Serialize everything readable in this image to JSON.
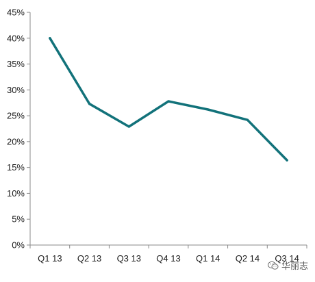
{
  "chart_data": {
    "type": "line",
    "categories": [
      "Q1 13",
      "Q2 13",
      "Q3 13",
      "Q4 13",
      "Q1 14",
      "Q2 14",
      "Q3 14"
    ],
    "series": [
      {
        "values": [
          40.0,
          27.3,
          22.9,
          27.8,
          26.2,
          24.2,
          16.4
        ],
        "color": "#12727a"
      }
    ],
    "title": "",
    "xlabel": "",
    "ylabel": "",
    "ylim": [
      0,
      45
    ],
    "yticks": [
      0,
      5,
      10,
      15,
      20,
      25,
      30,
      35,
      40,
      45
    ],
    "ytick_labels": [
      "0%",
      "5%",
      "10%",
      "15%",
      "20%",
      "25%",
      "30%",
      "35%",
      "40%",
      "45%"
    ],
    "grid": false,
    "legend": "none"
  },
  "watermark": {
    "text": "华丽志",
    "icon": "wechat-icon"
  }
}
